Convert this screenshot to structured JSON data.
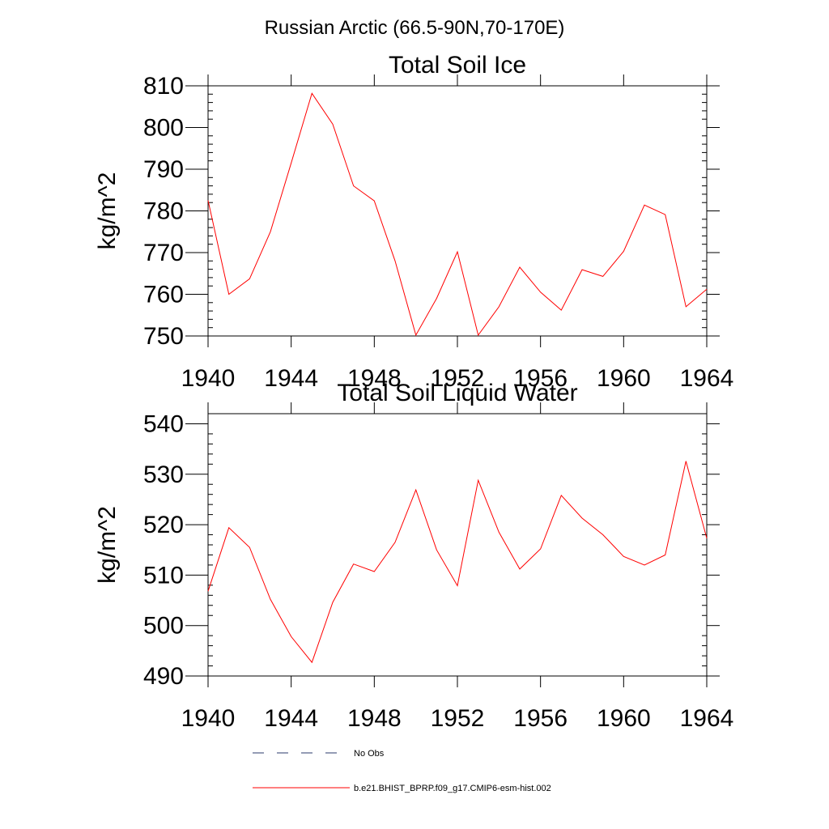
{
  "figure": {
    "title": "Russian Arctic (66.5-90N,70-170E)"
  },
  "legend": {
    "obs_label": "No Obs",
    "model_label": "b.e21.BHIST_BPRP.f09_g17.CMIP6-esm-hist.002",
    "model_color": "#ff0000",
    "obs_color": "#2b3a6b"
  },
  "chart_data": [
    {
      "type": "line",
      "title": "Total Soil Ice",
      "xlabel": "",
      "ylabel": "kg/m^2",
      "xlim": [
        1940,
        1964
      ],
      "ylim": [
        750,
        810
      ],
      "xticks": [
        1940,
        1944,
        1948,
        1952,
        1956,
        1960,
        1964
      ],
      "yticks": [
        750,
        760,
        770,
        780,
        790,
        800,
        810
      ],
      "grid": false,
      "x": [
        1940,
        1941,
        1942,
        1943,
        1944,
        1945,
        1946,
        1947,
        1948,
        1949,
        1950,
        1951,
        1952,
        1953,
        1954,
        1955,
        1956,
        1957,
        1958,
        1959,
        1960,
        1961,
        1962,
        1963,
        1964
      ],
      "series": [
        {
          "name": "b.e21.BHIST_BPRP.f09_g17.CMIP6-esm-hist.002",
          "color": "#ff0000",
          "values": [
            782.5,
            760,
            763.7,
            775,
            791.5,
            808.2,
            800.8,
            786,
            782.4,
            768,
            750.2,
            759,
            770.2,
            750.2,
            757,
            766.5,
            760.5,
            756.2,
            765.9,
            764.3,
            770.3,
            781.4,
            779.1,
            757,
            761.2
          ]
        }
      ]
    },
    {
      "type": "line",
      "title": "Total Soil Liquid Water",
      "xlabel": "",
      "ylabel": "kg/m^2",
      "xlim": [
        1940,
        1964
      ],
      "ylim": [
        490,
        542
      ],
      "xticks": [
        1940,
        1944,
        1948,
        1952,
        1956,
        1960,
        1964
      ],
      "yticks": [
        490,
        500,
        510,
        520,
        530,
        540
      ],
      "grid": false,
      "x": [
        1940,
        1941,
        1942,
        1943,
        1944,
        1945,
        1946,
        1947,
        1948,
        1949,
        1950,
        1951,
        1952,
        1953,
        1954,
        1955,
        1956,
        1957,
        1958,
        1959,
        1960,
        1961,
        1962,
        1963,
        1964
      ],
      "series": [
        {
          "name": "b.e21.BHIST_BPRP.f09_g17.CMIP6-esm-hist.002",
          "color": "#ff0000",
          "values": [
            506.8,
            519.4,
            515.5,
            505.2,
            497.8,
            492.7,
            504.6,
            512.2,
            510.7,
            516.5,
            526.9,
            515,
            507.9,
            528.8,
            518.5,
            511.2,
            515.2,
            525.8,
            521.3,
            518,
            513.7,
            512,
            514,
            532.6,
            517.3
          ]
        }
      ]
    }
  ]
}
